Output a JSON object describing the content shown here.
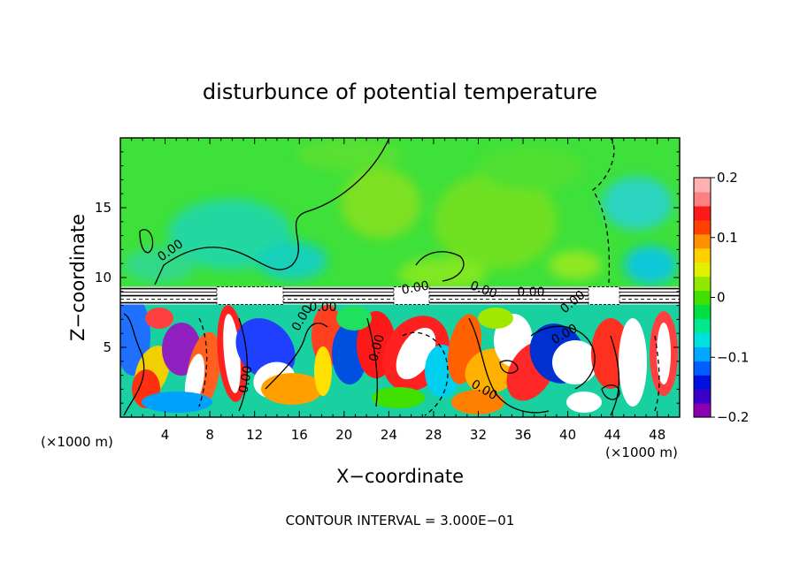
{
  "chart_data": {
    "type": "heatmap",
    "title": "disturbunce of potential temperature",
    "xlabel": "X−coordinate",
    "ylabel": "Z−coordinate",
    "x_unit": "(×1000 m)",
    "y_unit": "(×1000 m)",
    "xlim": [
      0,
      50
    ],
    "ylim": [
      0,
      20
    ],
    "x_ticks": [
      "4",
      "8",
      "12",
      "16",
      "20",
      "24",
      "28",
      "32",
      "36",
      "40",
      "44",
      "48"
    ],
    "y_ticks": [
      "5",
      "10",
      "15"
    ],
    "colorbar": {
      "range": [
        -0.2,
        0.2
      ],
      "tick_labels": [
        "0.2",
        "0.1",
        "0",
        "−0.1",
        "−0.2"
      ],
      "colors": [
        "#8a00b0",
        "#3a00c8",
        "#0010e0",
        "#0060ff",
        "#00a8ff",
        "#00e0e0",
        "#00e890",
        "#00e040",
        "#40e000",
        "#90e800",
        "#e0f000",
        "#ffd000",
        "#ff9000",
        "#ff4000",
        "#ff1818",
        "#ff8080",
        "#ffb0b0"
      ]
    },
    "contour_labels": [
      "0.00",
      "0.00",
      "0.00",
      "0.00",
      "0.00",
      "0.00",
      "0.00",
      "0.00",
      "0.00",
      "0.00",
      "0.00"
    ],
    "contour_interval_text": "CONTOUR INTERVAL = 3.000E−01",
    "upper_region_value": 0.0,
    "interface_height": 8.7
  }
}
